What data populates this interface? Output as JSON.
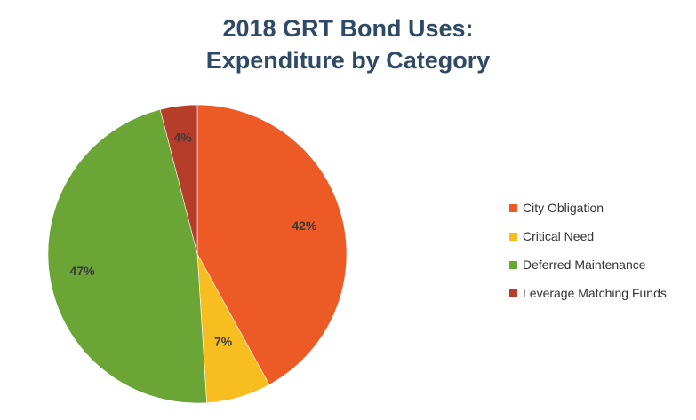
{
  "chart_data": {
    "type": "pie",
    "title_line1": "2018 GRT Bond Uses:",
    "title_line2": "Expenditure by Category",
    "slices": [
      {
        "label": "City Obligation",
        "value": 42,
        "display": "42%",
        "color": "#ec5a26"
      },
      {
        "label": "Critical Need",
        "value": 7,
        "display": "7%",
        "color": "#f8bd1e"
      },
      {
        "label": "Deferred Maintenance",
        "value": 47,
        "display": "47%",
        "color": "#6aa535"
      },
      {
        "label": "Leverage Matching Funds",
        "value": 4,
        "display": "4%",
        "color": "#b63d2a"
      }
    ],
    "start_angle": "12 o'clock",
    "direction": "clockwise",
    "legend_position": "right"
  }
}
